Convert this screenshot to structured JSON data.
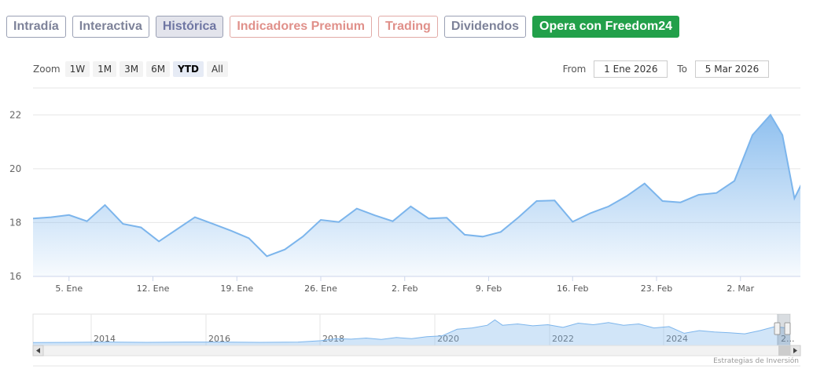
{
  "tabs": [
    {
      "label": "Intradía",
      "style": "normal"
    },
    {
      "label": "Interactiva",
      "style": "normal"
    },
    {
      "label": "Histórica",
      "style": "active"
    },
    {
      "label": "Indicadores Premium",
      "style": "premium"
    },
    {
      "label": "Trading",
      "style": "premium"
    },
    {
      "label": "Dividendos",
      "style": "normal"
    },
    {
      "label": "Opera con Freedom24",
      "style": "freedom"
    }
  ],
  "zoom": {
    "label": "Zoom",
    "buttons": [
      "1W",
      "1M",
      "3M",
      "6M",
      "YTD",
      "All"
    ],
    "active": "YTD"
  },
  "range": {
    "from_label": "From",
    "from_value": "1 Ene 2026",
    "to_label": "To",
    "to_value": "5 Mar 2026"
  },
  "colors": {
    "line": "#7cb5ec",
    "accent_green": "#22a04a"
  },
  "chart_data": {
    "type": "area",
    "ylim": [
      16,
      23
    ],
    "yticks": [
      16,
      18,
      20,
      22
    ],
    "x_ticks": [
      {
        "label": "5. Ene",
        "day": 5
      },
      {
        "label": "12. Ene",
        "day": 12
      },
      {
        "label": "19. Ene",
        "day": 19
      },
      {
        "label": "26. Ene",
        "day": 26
      },
      {
        "label": "2. Feb",
        "day": 33
      },
      {
        "label": "9. Feb",
        "day": 40
      },
      {
        "label": "16. Feb",
        "day": 47
      },
      {
        "label": "23. Feb",
        "day": 54
      },
      {
        "label": "2. Mar",
        "day": 61
      }
    ],
    "xlim": [
      2,
      66
    ],
    "series": [
      {
        "points": [
          [
            2,
            18.15
          ],
          [
            3.5,
            18.2
          ],
          [
            5,
            18.28
          ],
          [
            6.5,
            18.05
          ],
          [
            8,
            18.65
          ],
          [
            9.5,
            17.95
          ],
          [
            11,
            17.82
          ],
          [
            12.5,
            17.3
          ],
          [
            14,
            17.75
          ],
          [
            15.5,
            18.2
          ],
          [
            17,
            17.95
          ],
          [
            18.5,
            17.7
          ],
          [
            20,
            17.42
          ],
          [
            21.5,
            16.75
          ],
          [
            23,
            17.0
          ],
          [
            24.5,
            17.48
          ],
          [
            26,
            18.1
          ],
          [
            27.5,
            18.02
          ],
          [
            29,
            18.52
          ],
          [
            30.5,
            18.27
          ],
          [
            32,
            18.05
          ],
          [
            33.5,
            18.6
          ],
          [
            35,
            18.15
          ],
          [
            36.5,
            18.18
          ],
          [
            38,
            17.55
          ],
          [
            39.5,
            17.48
          ],
          [
            41,
            17.65
          ],
          [
            42.5,
            18.2
          ],
          [
            44,
            18.8
          ],
          [
            45.5,
            18.82
          ],
          [
            47,
            18.03
          ],
          [
            48.5,
            18.35
          ],
          [
            50,
            18.6
          ],
          [
            51.5,
            18.98
          ],
          [
            53,
            19.45
          ],
          [
            54.5,
            18.8
          ],
          [
            56,
            18.75
          ],
          [
            57.5,
            19.03
          ],
          [
            59,
            19.1
          ],
          [
            60.5,
            19.55
          ],
          [
            62,
            21.25
          ],
          [
            63.5,
            22.0
          ],
          [
            64.5,
            21.25
          ],
          [
            65.5,
            18.9
          ],
          [
            66.5,
            19.8
          ],
          [
            67.5,
            19.55
          ]
        ]
      }
    ]
  },
  "navigator": {
    "year_labels": [
      "2014",
      "2016",
      "2018",
      "2020",
      "2022",
      "2024",
      "2..."
    ]
  },
  "credit": "Estrategias de Inversión"
}
